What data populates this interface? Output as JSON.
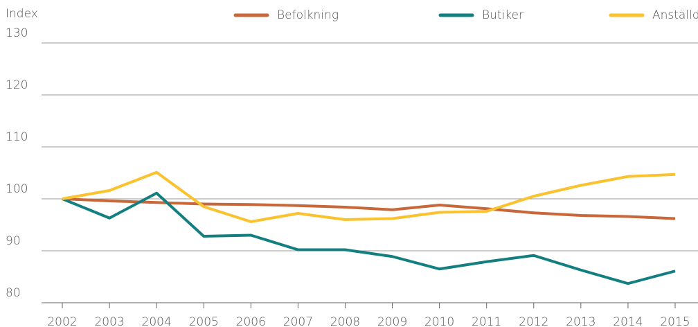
{
  "chart_data": {
    "type": "line",
    "y_label": "Index",
    "x": [
      "2002",
      "2003",
      "2004",
      "2005",
      "2006",
      "2007",
      "2008",
      "2009",
      "2010",
      "2011",
      "2012",
      "2013",
      "2014",
      "2015"
    ],
    "series": [
      {
        "name": "Befolkning",
        "color": "#c8683a",
        "values": [
          100,
          99.6,
          99.3,
          99.0,
          98.9,
          98.7,
          98.4,
          97.9,
          98.8,
          98.1,
          97.3,
          96.8,
          96.6,
          96.2
        ]
      },
      {
        "name": "Butiker",
        "color": "#147f80",
        "values": [
          100,
          96.3,
          101.1,
          92.8,
          93.0,
          90.2,
          90.2,
          88.9,
          86.5,
          87.9,
          89.1,
          86.3,
          83.7,
          86.1
        ]
      },
      {
        "name": "Anställda",
        "color": "#f9c22e",
        "values": [
          100,
          101.6,
          105.1,
          98.5,
          95.6,
          97.2,
          96.0,
          96.2,
          97.4,
          97.6,
          100.5,
          102.6,
          104.3,
          104.7
        ]
      }
    ],
    "ylim": [
      80,
      130
    ],
    "yticks": [
      80,
      90,
      100,
      110,
      120,
      130
    ],
    "grid": true,
    "legend": "top"
  }
}
